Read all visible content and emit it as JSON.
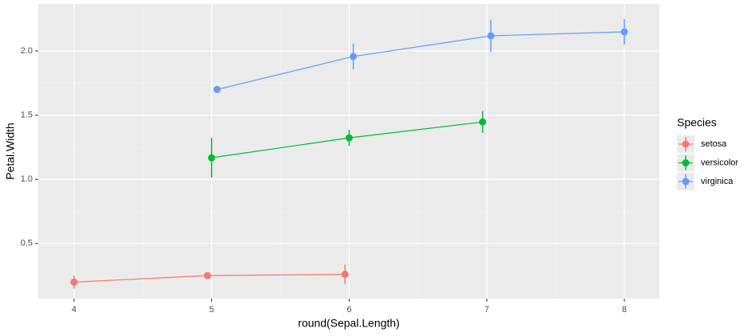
{
  "chart_data": {
    "type": "pointrange",
    "x_label": "round(Sepal.Length)",
    "y_label": "Petal.Width",
    "legend_title": "Species",
    "legend_position": "right",
    "grid": true,
    "xlim": [
      3.74,
      8.255
    ],
    "ylim": [
      0.071,
      2.366
    ],
    "xticks": [
      4,
      5,
      6,
      7,
      8
    ],
    "yticks": [
      0.5,
      {
        "value": 1,
        "label": "1.0"
      },
      1.5,
      {
        "value": 2,
        "label": "2.0"
      }
    ],
    "series": [
      {
        "name": "setosa",
        "color": "#F8766D",
        "x": [
          4.0,
          4.97,
          5.97
        ],
        "values": [
          0.199,
          0.25,
          0.26
        ],
        "errors": [
          0.05,
          0.02,
          0.075
        ]
      },
      {
        "name": "versicolor",
        "color": "#00BA38",
        "x": [
          5.0,
          6.0,
          6.97
        ],
        "values": [
          1.168,
          1.323,
          1.447
        ],
        "errors": [
          0.155,
          0.062,
          0.085
        ]
      },
      {
        "name": "virginica",
        "color": "#619CFF",
        "x": [
          5.04,
          6.03,
          7.03,
          8.0
        ],
        "values": [
          1.7,
          1.957,
          2.118,
          2.149
        ],
        "errors": [
          null,
          0.1,
          0.125,
          0.1
        ]
      }
    ]
  }
}
